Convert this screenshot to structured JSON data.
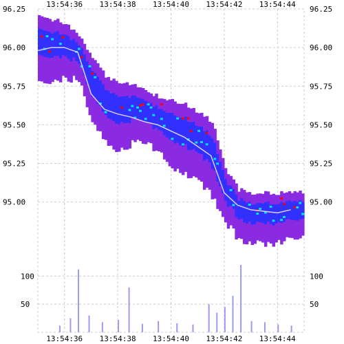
{
  "chart_data": [
    {
      "type": "heatmap",
      "title": "",
      "xlabel": "",
      "ylabel": "",
      "x_ticks": [
        "13:54:36",
        "13:54:38",
        "13:54:40",
        "13:54:42",
        "13:54:44"
      ],
      "y_ticks": [
        "96.25",
        "96.00",
        "95.75",
        "95.50",
        "95.25",
        "95.00"
      ],
      "ylim": [
        94.66,
        96.25
      ],
      "grid": true,
      "colors": {
        "low_intensity": "#8a2be2",
        "mid_intensity": "#3030ff",
        "high_intensity": "#00e5e5",
        "peak_intensity": "#ff0000",
        "trade_line": "#d8d0ff"
      },
      "price_band": [
        {
          "t": "13:54:35.0",
          "high": 96.21,
          "low": 95.78
        },
        {
          "t": "13:54:35.5",
          "high": 96.18,
          "low": 95.78
        },
        {
          "t": "13:54:36.0",
          "high": 96.16,
          "low": 95.8
        },
        {
          "t": "13:54:36.5",
          "high": 96.08,
          "low": 95.79
        },
        {
          "t": "13:54:37.0",
          "high": 95.93,
          "low": 95.52
        },
        {
          "t": "13:54:37.5",
          "high": 95.82,
          "low": 95.4
        },
        {
          "t": "13:54:38.0",
          "high": 95.77,
          "low": 95.33
        },
        {
          "t": "13:54:38.5",
          "high": 95.76,
          "low": 95.38
        },
        {
          "t": "13:54:39.0",
          "high": 95.72,
          "low": 95.38
        },
        {
          "t": "13:54:39.5",
          "high": 95.68,
          "low": 95.32
        },
        {
          "t": "13:54:40.0",
          "high": 95.66,
          "low": 95.22
        },
        {
          "t": "13:54:40.5",
          "high": 95.63,
          "low": 95.18
        },
        {
          "t": "13:54:41.0",
          "high": 95.58,
          "low": 95.14
        },
        {
          "t": "13:54:41.5",
          "high": 95.52,
          "low": 95.04
        },
        {
          "t": "13:54:42.0",
          "high": 95.22,
          "low": 94.87
        },
        {
          "t": "13:54:42.5",
          "high": 95.08,
          "low": 94.76
        },
        {
          "t": "13:54:43.0",
          "high": 95.06,
          "low": 94.74
        },
        {
          "t": "13:54:43.5",
          "high": 95.06,
          "low": 94.73
        },
        {
          "t": "13:54:44.0",
          "high": 95.06,
          "low": 94.74
        },
        {
          "t": "13:54:44.5",
          "high": 95.07,
          "low": 94.77
        }
      ],
      "trade_price": [
        {
          "t": "13:54:35.0",
          "price": 95.98
        },
        {
          "t": "13:54:35.5",
          "price": 96.0
        },
        {
          "t": "13:54:36.0",
          "price": 96.0
        },
        {
          "t": "13:54:36.5",
          "price": 95.97
        },
        {
          "t": "13:54:37.0",
          "price": 95.7
        },
        {
          "t": "13:54:37.5",
          "price": 95.6
        },
        {
          "t": "13:54:38.0",
          "price": 95.57
        },
        {
          "t": "13:54:38.5",
          "price": 95.55
        },
        {
          "t": "13:54:39.0",
          "price": 95.52
        },
        {
          "t": "13:54:39.5",
          "price": 95.5
        },
        {
          "t": "13:54:40.0",
          "price": 95.46
        },
        {
          "t": "13:54:40.5",
          "price": 95.42
        },
        {
          "t": "13:54:41.0",
          "price": 95.36
        },
        {
          "t": "13:54:41.5",
          "price": 95.3
        },
        {
          "t": "13:54:42.0",
          "price": 95.06
        },
        {
          "t": "13:54:42.5",
          "price": 94.98
        },
        {
          "t": "13:54:43.0",
          "price": 94.95
        },
        {
          "t": "13:54:43.5",
          "price": 94.94
        },
        {
          "t": "13:54:44.0",
          "price": 94.93
        },
        {
          "t": "13:54:44.5",
          "price": 94.95
        }
      ]
    },
    {
      "type": "bar",
      "title": "",
      "xlabel": "",
      "ylabel": "",
      "y_ticks": [
        "100",
        "50"
      ],
      "ylim": [
        0,
        120
      ],
      "color": "#9a9af0",
      "volume": [
        {
          "t": "13:54:35.8",
          "value": 12
        },
        {
          "t": "13:54:36.2",
          "value": 25
        },
        {
          "t": "13:54:36.5",
          "value": 112
        },
        {
          "t": "13:54:36.9",
          "value": 30
        },
        {
          "t": "13:54:37.4",
          "value": 18
        },
        {
          "t": "13:54:38.0",
          "value": 22
        },
        {
          "t": "13:54:38.4",
          "value": 80
        },
        {
          "t": "13:54:38.9",
          "value": 15
        },
        {
          "t": "13:54:39.5",
          "value": 20
        },
        {
          "t": "13:54:40.2",
          "value": 16
        },
        {
          "t": "13:54:40.8",
          "value": 14
        },
        {
          "t": "13:54:41.4",
          "value": 50
        },
        {
          "t": "13:54:41.7",
          "value": 35
        },
        {
          "t": "13:54:42.0",
          "value": 45
        },
        {
          "t": "13:54:42.3",
          "value": 65
        },
        {
          "t": "13:54:42.6",
          "value": 120
        },
        {
          "t": "13:54:43.0",
          "value": 20
        },
        {
          "t": "13:54:43.5",
          "value": 18
        },
        {
          "t": "13:54:44.0",
          "value": 14
        },
        {
          "t": "13:54:44.5",
          "value": 12
        }
      ]
    }
  ]
}
